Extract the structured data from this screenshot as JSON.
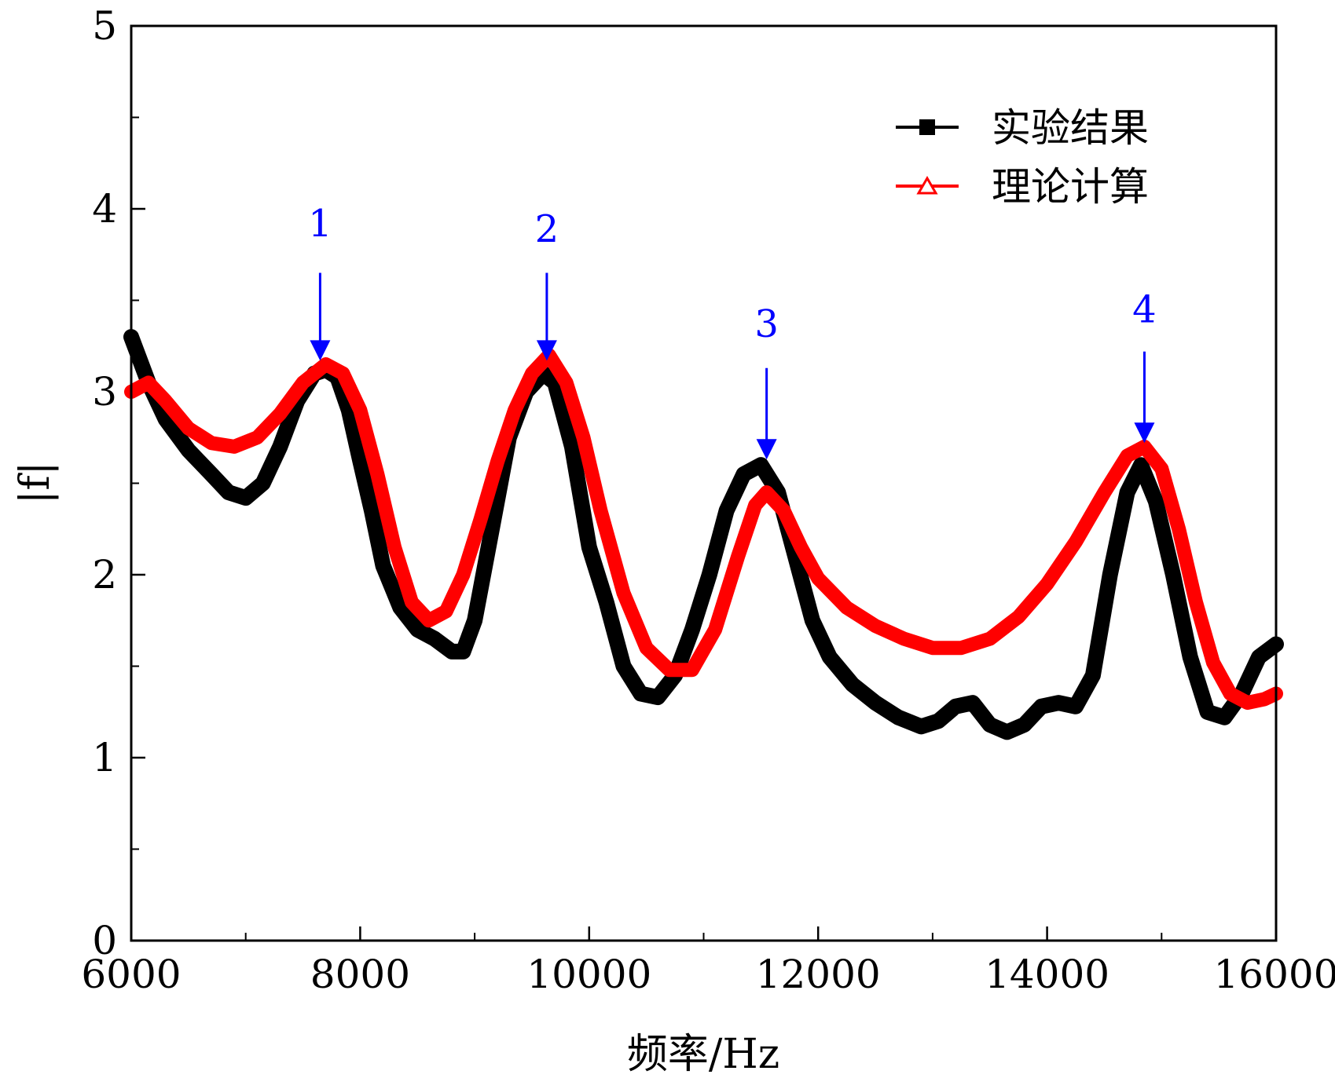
{
  "chart_data": {
    "type": "line",
    "title": "",
    "xlabel": "频率/Hz",
    "ylabel": "|f|",
    "xlim": [
      6000,
      16000
    ],
    "ylim": [
      0,
      5
    ],
    "x_ticks": [
      6000,
      8000,
      10000,
      12000,
      14000,
      16000
    ],
    "x_tick_labels": [
      "6000",
      "8000",
      "10000",
      "12000",
      "14000",
      "16000"
    ],
    "y_ticks": [
      0,
      1,
      2,
      3,
      4,
      5
    ],
    "y_tick_labels": [
      "0",
      "1",
      "2",
      "3",
      "4",
      "5"
    ],
    "x_minor_step": 1000,
    "y_minor_step": 0.5,
    "legend_position": "top-right",
    "series": [
      {
        "name": "实验结果",
        "color": "#000000",
        "marker": "square",
        "points": [
          [
            6000,
            3.3
          ],
          [
            6150,
            3.05
          ],
          [
            6300,
            2.85
          ],
          [
            6500,
            2.68
          ],
          [
            6700,
            2.55
          ],
          [
            6850,
            2.45
          ],
          [
            7000,
            2.42
          ],
          [
            7150,
            2.5
          ],
          [
            7300,
            2.7
          ],
          [
            7450,
            2.95
          ],
          [
            7600,
            3.1
          ],
          [
            7700,
            3.12
          ],
          [
            7800,
            3.08
          ],
          [
            7900,
            2.9
          ],
          [
            8000,
            2.62
          ],
          [
            8100,
            2.35
          ],
          [
            8200,
            2.05
          ],
          [
            8350,
            1.82
          ],
          [
            8500,
            1.7
          ],
          [
            8650,
            1.65
          ],
          [
            8800,
            1.58
          ],
          [
            8900,
            1.58
          ],
          [
            9000,
            1.75
          ],
          [
            9150,
            2.25
          ],
          [
            9300,
            2.75
          ],
          [
            9450,
            3.0
          ],
          [
            9600,
            3.1
          ],
          [
            9700,
            3.05
          ],
          [
            9850,
            2.7
          ],
          [
            10000,
            2.15
          ],
          [
            10150,
            1.85
          ],
          [
            10300,
            1.5
          ],
          [
            10450,
            1.35
          ],
          [
            10600,
            1.33
          ],
          [
            10750,
            1.45
          ],
          [
            10900,
            1.7
          ],
          [
            11050,
            2.0
          ],
          [
            11200,
            2.35
          ],
          [
            11350,
            2.55
          ],
          [
            11500,
            2.6
          ],
          [
            11650,
            2.45
          ],
          [
            11800,
            2.1
          ],
          [
            11950,
            1.75
          ],
          [
            12100,
            1.55
          ],
          [
            12300,
            1.4
          ],
          [
            12500,
            1.3
          ],
          [
            12700,
            1.22
          ],
          [
            12900,
            1.17
          ],
          [
            13050,
            1.2
          ],
          [
            13200,
            1.28
          ],
          [
            13350,
            1.3
          ],
          [
            13500,
            1.18
          ],
          [
            13650,
            1.14
          ],
          [
            13800,
            1.18
          ],
          [
            13950,
            1.28
          ],
          [
            14100,
            1.3
          ],
          [
            14250,
            1.28
          ],
          [
            14400,
            1.45
          ],
          [
            14550,
            2.0
          ],
          [
            14700,
            2.45
          ],
          [
            14820,
            2.6
          ],
          [
            14950,
            2.4
          ],
          [
            15100,
            2.0
          ],
          [
            15250,
            1.55
          ],
          [
            15400,
            1.25
          ],
          [
            15550,
            1.22
          ],
          [
            15700,
            1.35
          ],
          [
            15850,
            1.55
          ],
          [
            16000,
            1.62
          ]
        ]
      },
      {
        "name": "理论计算",
        "color": "#ff0000",
        "marker": "triangle-open",
        "points": [
          [
            6000,
            3.0
          ],
          [
            6150,
            3.05
          ],
          [
            6300,
            2.95
          ],
          [
            6500,
            2.8
          ],
          [
            6700,
            2.72
          ],
          [
            6900,
            2.7
          ],
          [
            7100,
            2.75
          ],
          [
            7300,
            2.88
          ],
          [
            7500,
            3.05
          ],
          [
            7700,
            3.15
          ],
          [
            7850,
            3.1
          ],
          [
            8000,
            2.9
          ],
          [
            8150,
            2.55
          ],
          [
            8300,
            2.15
          ],
          [
            8450,
            1.85
          ],
          [
            8600,
            1.75
          ],
          [
            8750,
            1.8
          ],
          [
            8900,
            2.0
          ],
          [
            9050,
            2.3
          ],
          [
            9200,
            2.62
          ],
          [
            9350,
            2.9
          ],
          [
            9500,
            3.1
          ],
          [
            9650,
            3.2
          ],
          [
            9800,
            3.05
          ],
          [
            9950,
            2.75
          ],
          [
            10100,
            2.35
          ],
          [
            10300,
            1.9
          ],
          [
            10500,
            1.6
          ],
          [
            10700,
            1.48
          ],
          [
            10900,
            1.48
          ],
          [
            11100,
            1.7
          ],
          [
            11300,
            2.1
          ],
          [
            11450,
            2.38
          ],
          [
            11550,
            2.45
          ],
          [
            11700,
            2.35
          ],
          [
            11850,
            2.15
          ],
          [
            12000,
            1.98
          ],
          [
            12250,
            1.82
          ],
          [
            12500,
            1.72
          ],
          [
            12750,
            1.65
          ],
          [
            13000,
            1.6
          ],
          [
            13250,
            1.6
          ],
          [
            13500,
            1.65
          ],
          [
            13750,
            1.77
          ],
          [
            14000,
            1.95
          ],
          [
            14250,
            2.18
          ],
          [
            14500,
            2.45
          ],
          [
            14700,
            2.65
          ],
          [
            14850,
            2.7
          ],
          [
            15000,
            2.58
          ],
          [
            15150,
            2.25
          ],
          [
            15300,
            1.85
          ],
          [
            15450,
            1.52
          ],
          [
            15600,
            1.35
          ],
          [
            15750,
            1.3
          ],
          [
            15900,
            1.32
          ],
          [
            16000,
            1.35
          ]
        ]
      }
    ],
    "annotations": [
      {
        "text": "1",
        "x": 7650,
        "y_tip": 3.17,
        "y_tail": 3.65,
        "y_label": 3.85,
        "color": "#0000ff"
      },
      {
        "text": "2",
        "x": 9630,
        "y_tip": 3.17,
        "y_tail": 3.65,
        "y_label": 3.82,
        "color": "#0000ff"
      },
      {
        "text": "3",
        "x": 11550,
        "y_tip": 2.63,
        "y_tail": 3.13,
        "y_label": 3.3,
        "color": "#0000ff"
      },
      {
        "text": "4",
        "x": 14850,
        "y_tip": 2.72,
        "y_tail": 3.22,
        "y_label": 3.38,
        "color": "#0000ff"
      }
    ]
  }
}
